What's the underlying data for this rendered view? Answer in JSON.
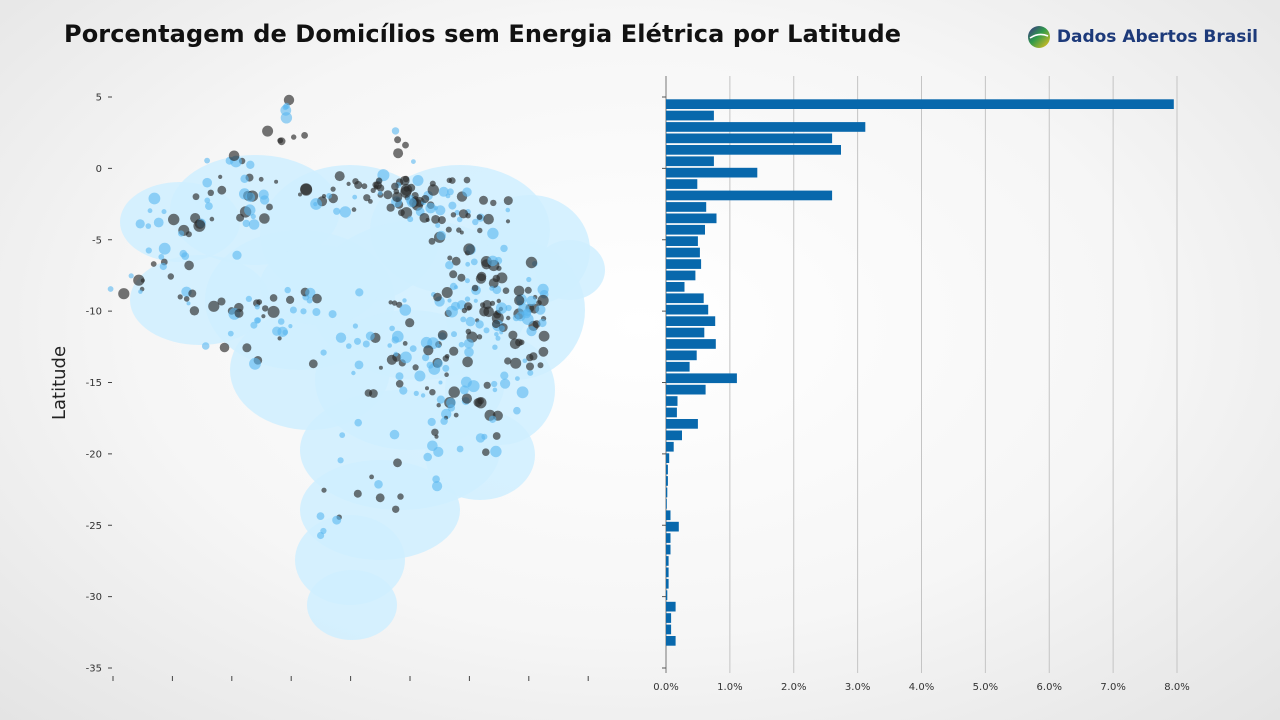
{
  "header": {
    "title": "Porcentagem de Domicílios sem Energia Elétrica por Latitude",
    "brand_name": "Dados Abertos Brasil"
  },
  "colors": {
    "bar": "#0868ac",
    "map_fill": "#cfeeff",
    "dot_light": "#5ab8f0",
    "dot_dark": "#2a2a2a",
    "brand_text": "#1d3a7a"
  },
  "chart_data": [
    {
      "type": "scatter",
      "description_role": "map of municipalities plotted by latitude",
      "ylabel": "Latitude",
      "ylim": [
        -35,
        5
      ],
      "yticks": [
        5,
        0,
        -5,
        -10,
        -15,
        -20,
        -25,
        -30,
        -35
      ],
      "ytick_labels": [
        "5",
        "0",
        "-5",
        "-10",
        "-15",
        "-20",
        "-25",
        "-30",
        "-35"
      ],
      "xtick_labels": [
        "",
        "",
        "",
        "",
        "",
        "",
        "",
        "",
        ""
      ],
      "grid": false
    },
    {
      "type": "bar",
      "orientation": "horizontal",
      "xlim": [
        0,
        0.081
      ],
      "xticks": [
        0,
        0.01,
        0.02,
        0.03,
        0.04,
        0.05,
        0.06,
        0.07,
        0.08
      ],
      "xtick_labels": [
        "0.0%",
        "1.0%",
        "2.0%",
        "3.0%",
        "4.0%",
        "5.0%",
        "6.0%",
        "7.0%",
        "8.0%"
      ],
      "grid": true,
      "latitudes": [
        4.5,
        3.7,
        2.9,
        2.1,
        1.3,
        0.5,
        -0.3,
        -1.1,
        -1.9,
        -2.7,
        -3.5,
        -4.3,
        -5.1,
        -5.9,
        -6.7,
        -7.5,
        -8.3,
        -9.1,
        -9.9,
        -10.7,
        -11.5,
        -12.3,
        -13.1,
        -13.9,
        -14.7,
        -15.5,
        -16.3,
        -17.1,
        -17.9,
        -18.7,
        -19.5,
        -20.3,
        -21.1,
        -21.9,
        -22.7,
        -23.5,
        -24.3,
        -25.1,
        -25.9,
        -26.7,
        -27.5,
        -28.3,
        -29.1,
        -29.9,
        -30.7,
        -31.5,
        -32.3,
        -33.1
      ],
      "values": [
        0.0795,
        0.0075,
        0.0312,
        0.026,
        0.0274,
        0.0075,
        0.0143,
        0.0049,
        0.026,
        0.0063,
        0.0079,
        0.0061,
        0.005,
        0.0053,
        0.0055,
        0.0046,
        0.0029,
        0.0059,
        0.0066,
        0.0077,
        0.006,
        0.0078,
        0.0048,
        0.0037,
        0.0111,
        0.0062,
        0.0018,
        0.0017,
        0.005,
        0.0025,
        0.0012,
        0.0005,
        0.0003,
        0.0003,
        0.0002,
        0.0001,
        0.0007,
        0.002,
        0.0007,
        0.0007,
        0.0004,
        0.0004,
        0.0004,
        0.0002,
        0.0015,
        0.0008,
        0.0008,
        0.0015
      ]
    }
  ]
}
